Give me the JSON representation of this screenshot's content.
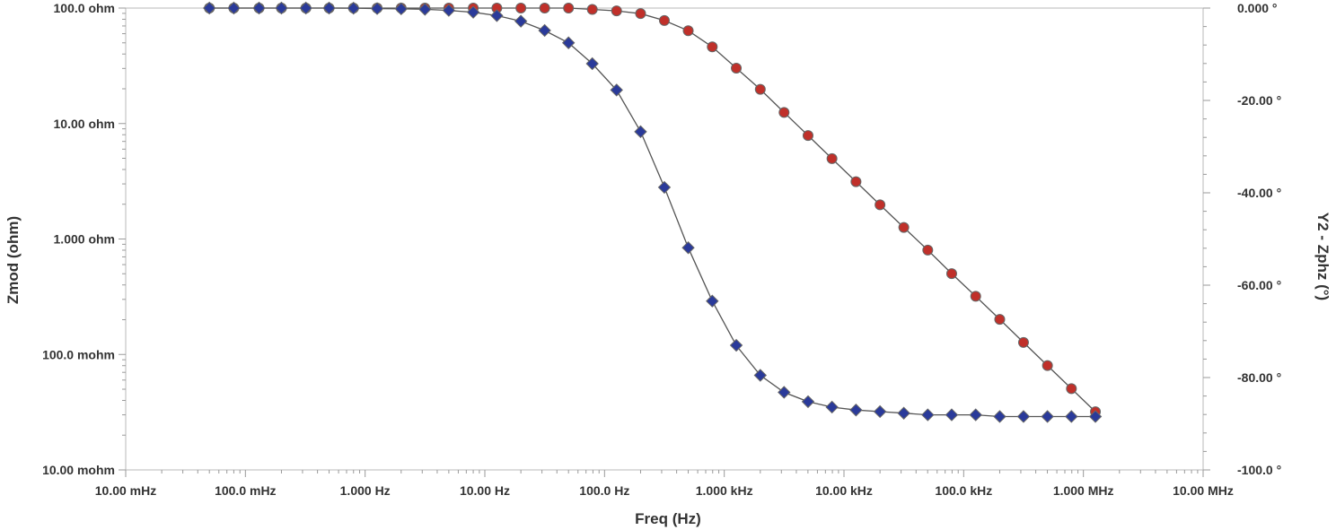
{
  "chart_data": {
    "type": "line",
    "xlabel": "Freq (Hz)",
    "ylabel": "Zmod (ohm)",
    "y2label": "Y2 - Zphz (°)",
    "x_scale": "log",
    "y_scale": "log",
    "xlim": [
      0.01,
      10000000
    ],
    "ylim": [
      0.01,
      100
    ],
    "y2lim": [
      -100,
      0
    ],
    "grid": false,
    "legend": "none",
    "x_ticks": [
      {
        "value": 0.01,
        "label": "10.00 mHz"
      },
      {
        "value": 0.1,
        "label": "100.0 mHz"
      },
      {
        "value": 1,
        "label": "1.000 Hz"
      },
      {
        "value": 10,
        "label": "10.00 Hz"
      },
      {
        "value": 100,
        "label": "100.0 Hz"
      },
      {
        "value": 1000,
        "label": "1.000 kHz"
      },
      {
        "value": 10000,
        "label": "10.00 kHz"
      },
      {
        "value": 100000,
        "label": "100.0 kHz"
      },
      {
        "value": 1000000,
        "label": "1.000 MHz"
      },
      {
        "value": 10000000,
        "label": "10.00 MHz"
      }
    ],
    "y_ticks": [
      {
        "value": 100,
        "label": "100.0 ohm"
      },
      {
        "value": 10,
        "label": "10.00 ohm"
      },
      {
        "value": 1,
        "label": "1.000 ohm"
      },
      {
        "value": 0.1,
        "label": "100.0 mohm"
      },
      {
        "value": 0.01,
        "label": "10.00 mohm"
      }
    ],
    "y2_ticks": [
      {
        "value": 0,
        "label": "0.000 °"
      },
      {
        "value": -20,
        "label": "-20.00 °"
      },
      {
        "value": -40,
        "label": "-40.00 °"
      },
      {
        "value": -60,
        "label": "-60.00 °"
      },
      {
        "value": -80,
        "label": "-80.00 °"
      },
      {
        "value": -100,
        "label": "-100.0 °"
      }
    ],
    "series": [
      {
        "axis": "y2",
        "marker": "circle",
        "color": "#c0302a",
        "x": [
          0.05,
          0.08,
          0.13,
          0.2,
          0.32,
          0.5,
          0.8,
          1.26,
          2,
          3.16,
          5,
          8,
          12.6,
          20,
          31.6,
          50,
          79,
          126,
          200,
          316,
          500,
          794,
          1260,
          2000,
          3160,
          5010,
          7940,
          12600,
          20000,
          31600,
          50100,
          79400,
          126000,
          200000,
          316000,
          501000,
          794000,
          1260000
        ],
        "values": [
          0,
          0,
          0,
          0,
          0,
          0,
          0,
          0,
          0,
          0,
          0,
          0,
          0,
          0,
          0,
          0,
          -0.3,
          -0.6,
          -1.2,
          -2.7,
          -4.9,
          -8.4,
          -13,
          -17.6,
          -22.6,
          -27.6,
          -32.6,
          -37.6,
          -42.6,
          -47.5,
          -52.4,
          -57.5,
          -62.4,
          -67.4,
          -72.4,
          -77.4,
          -82.4,
          -87.4
        ]
      },
      {
        "axis": "y",
        "marker": "diamond",
        "color": "#2a3a9a",
        "x": [
          0.05,
          0.08,
          0.13,
          0.2,
          0.32,
          0.5,
          0.8,
          1.26,
          2,
          3.16,
          5,
          8,
          12.6,
          20,
          31.6,
          50,
          79,
          126,
          200,
          316,
          500,
          794,
          1260,
          2000,
          3160,
          5010,
          7940,
          12600,
          20000,
          31600,
          50100,
          79400,
          126000,
          200000,
          316000,
          501000,
          794000,
          1260000
        ],
        "values": [
          100,
          100,
          100,
          100,
          100,
          100,
          99.8,
          99,
          98.5,
          97.5,
          95.5,
          92,
          86,
          77,
          64,
          50,
          33,
          19.5,
          8.5,
          2.8,
          0.84,
          0.29,
          0.12,
          0.066,
          0.047,
          0.039,
          0.035,
          0.033,
          0.032,
          0.031,
          0.03,
          0.03,
          0.03,
          0.029,
          0.029,
          0.029,
          0.029,
          0.029
        ]
      }
    ]
  }
}
